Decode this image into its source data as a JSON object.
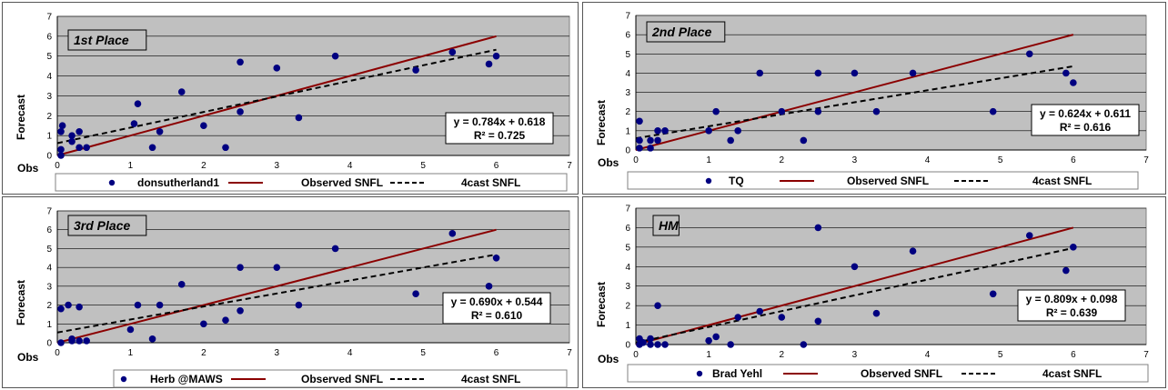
{
  "colors": {
    "plot_bg": "#c0c0c0",
    "points": "#000080",
    "observed_line": "#8b0000",
    "forecast_line": "#000000"
  },
  "chart_data": [
    {
      "type": "scatter",
      "title": "1st Place",
      "xlabel": "Obs",
      "ylabel": "Forecast",
      "xlim": [
        0,
        7
      ],
      "ylim": [
        0,
        7
      ],
      "grid": true,
      "legend_position": "bottom",
      "x_ticks": [
        "0",
        "1",
        "2",
        "3",
        "4",
        "5",
        "6",
        "7"
      ],
      "y_ticks": [
        "0",
        "1",
        "2",
        "3",
        "4",
        "5",
        "6",
        "7"
      ],
      "series": [
        {
          "name": "donsutherland1",
          "kind": "points",
          "points": [
            [
              0.05,
              0.0
            ],
            [
              0.05,
              0.3
            ],
            [
              0.05,
              1.2
            ],
            [
              0.07,
              1.5
            ],
            [
              0.2,
              0.7
            ],
            [
              0.2,
              1.0
            ],
            [
              0.3,
              1.2
            ],
            [
              0.3,
              0.4
            ],
            [
              0.4,
              0.4
            ],
            [
              1.05,
              1.6
            ],
            [
              1.1,
              2.6
            ],
            [
              1.3,
              0.4
            ],
            [
              1.4,
              1.2
            ],
            [
              1.7,
              3.2
            ],
            [
              2.0,
              1.5
            ],
            [
              2.3,
              0.4
            ],
            [
              2.5,
              4.7
            ],
            [
              2.5,
              2.2
            ],
            [
              3.0,
              4.4
            ],
            [
              3.3,
              1.9
            ],
            [
              3.8,
              5.0
            ],
            [
              4.9,
              4.3
            ],
            [
              5.4,
              5.2
            ],
            [
              5.9,
              4.6
            ],
            [
              6.0,
              5.0
            ]
          ]
        },
        {
          "name": "Observed SNFL",
          "kind": "line",
          "slope": 1,
          "intercept": 0
        },
        {
          "name": "4cast SNFL",
          "kind": "trend",
          "slope": 0.784,
          "intercept": 0.618
        }
      ],
      "equation": "y = 0.784x + 0.618",
      "r_squared": "R² = 0.725"
    },
    {
      "type": "scatter",
      "title": "2nd Place",
      "xlabel": "Obs",
      "ylabel": "Forecast",
      "xlim": [
        0,
        7
      ],
      "ylim": [
        0,
        7
      ],
      "grid": true,
      "legend_position": "bottom",
      "x_ticks": [
        "0",
        "1",
        "2",
        "3",
        "4",
        "5",
        "6",
        "7"
      ],
      "y_ticks": [
        "0",
        "1",
        "2",
        "3",
        "4",
        "5",
        "6",
        "7"
      ],
      "series": [
        {
          "name": "TQ",
          "kind": "points",
          "points": [
            [
              0.05,
              0.1
            ],
            [
              0.05,
              0.5
            ],
            [
              0.05,
              1.5
            ],
            [
              0.2,
              0.1
            ],
            [
              0.2,
              0.5
            ],
            [
              0.3,
              0.5
            ],
            [
              0.3,
              1.0
            ],
            [
              0.4,
              1.0
            ],
            [
              1.0,
              1.0
            ],
            [
              1.1,
              2.0
            ],
            [
              1.3,
              0.5
            ],
            [
              1.4,
              1.0
            ],
            [
              1.7,
              4.0
            ],
            [
              2.0,
              2.0
            ],
            [
              2.3,
              0.5
            ],
            [
              2.5,
              4.0
            ],
            [
              2.5,
              2.0
            ],
            [
              3.0,
              4.0
            ],
            [
              3.3,
              2.0
            ],
            [
              3.8,
              4.0
            ],
            [
              4.9,
              2.0
            ],
            [
              5.4,
              5.0
            ],
            [
              5.9,
              4.0
            ],
            [
              6.0,
              3.5
            ]
          ]
        },
        {
          "name": "Observed SNFL",
          "kind": "line",
          "slope": 1,
          "intercept": 0
        },
        {
          "name": "4cast SNFL",
          "kind": "trend",
          "slope": 0.624,
          "intercept": 0.611
        }
      ],
      "equation": "y = 0.624x + 0.611",
      "r_squared": "R² = 0.616"
    },
    {
      "type": "scatter",
      "title": "3rd Place",
      "xlabel": "Obs",
      "ylabel": "Forecast",
      "xlim": [
        0,
        7
      ],
      "ylim": [
        0,
        7
      ],
      "grid": true,
      "legend_position": "bottom",
      "x_ticks": [
        "0",
        "1",
        "2",
        "3",
        "4",
        "5",
        "6",
        "7"
      ],
      "y_ticks": [
        "0",
        "1",
        "2",
        "3",
        "4",
        "5",
        "6",
        "7"
      ],
      "series": [
        {
          "name": "Herb @MAWS",
          "kind": "points",
          "points": [
            [
              0.05,
              0.0
            ],
            [
              0.05,
              1.8
            ],
            [
              0.15,
              2.0
            ],
            [
              0.2,
              0.2
            ],
            [
              0.2,
              0.1
            ],
            [
              0.3,
              0.1
            ],
            [
              0.3,
              1.9
            ],
            [
              0.4,
              0.1
            ],
            [
              1.0,
              0.7
            ],
            [
              1.1,
              2.0
            ],
            [
              1.3,
              0.2
            ],
            [
              1.4,
              2.0
            ],
            [
              1.7,
              3.1
            ],
            [
              2.0,
              1.0
            ],
            [
              2.3,
              1.2
            ],
            [
              2.5,
              4.0
            ],
            [
              2.5,
              1.7
            ],
            [
              3.0,
              4.0
            ],
            [
              3.3,
              2.0
            ],
            [
              3.8,
              5.0
            ],
            [
              4.9,
              2.6
            ],
            [
              5.4,
              5.8
            ],
            [
              5.9,
              3.0
            ],
            [
              6.0,
              4.5
            ]
          ]
        },
        {
          "name": "Observed SNFL",
          "kind": "line",
          "slope": 1,
          "intercept": 0
        },
        {
          "name": "4cast SNFL",
          "kind": "trend",
          "slope": 0.69,
          "intercept": 0.544
        }
      ],
      "equation": "y = 0.690x + 0.544",
      "r_squared": "R² = 0.610"
    },
    {
      "type": "scatter",
      "title": "HM",
      "xlabel": "Obs",
      "ylabel": "Forecast",
      "xlim": [
        0,
        7
      ],
      "ylim": [
        0,
        7
      ],
      "grid": true,
      "legend_position": "bottom",
      "x_ticks": [
        "0",
        "1",
        "2",
        "3",
        "4",
        "5",
        "6",
        "7"
      ],
      "y_ticks": [
        "0",
        "1",
        "2",
        "3",
        "4",
        "5",
        "6",
        "7"
      ],
      "series": [
        {
          "name": "Brad Yehl",
          "kind": "points",
          "points": [
            [
              0.05,
              0.0
            ],
            [
              0.05,
              0.3
            ],
            [
              0.1,
              0.1
            ],
            [
              0.2,
              0.3
            ],
            [
              0.2,
              0.0
            ],
            [
              0.3,
              0.0
            ],
            [
              0.3,
              2.0
            ],
            [
              0.4,
              0.0
            ],
            [
              1.0,
              0.2
            ],
            [
              1.1,
              0.4
            ],
            [
              1.3,
              0.0
            ],
            [
              1.4,
              1.4
            ],
            [
              1.7,
              1.7
            ],
            [
              2.0,
              1.4
            ],
            [
              2.3,
              0.0
            ],
            [
              2.5,
              6.0
            ],
            [
              2.5,
              1.2
            ],
            [
              3.0,
              4.0
            ],
            [
              3.3,
              1.6
            ],
            [
              3.8,
              4.8
            ],
            [
              4.9,
              2.6
            ],
            [
              5.4,
              5.6
            ],
            [
              5.9,
              3.8
            ],
            [
              6.0,
              5.0
            ]
          ]
        },
        {
          "name": "Observed SNFL",
          "kind": "line",
          "slope": 1,
          "intercept": 0
        },
        {
          "name": "4cast SNFL",
          "kind": "trend",
          "slope": 0.809,
          "intercept": 0.098
        }
      ],
      "equation": "y = 0.809x + 0.098",
      "r_squared": "R² = 0.639"
    }
  ]
}
